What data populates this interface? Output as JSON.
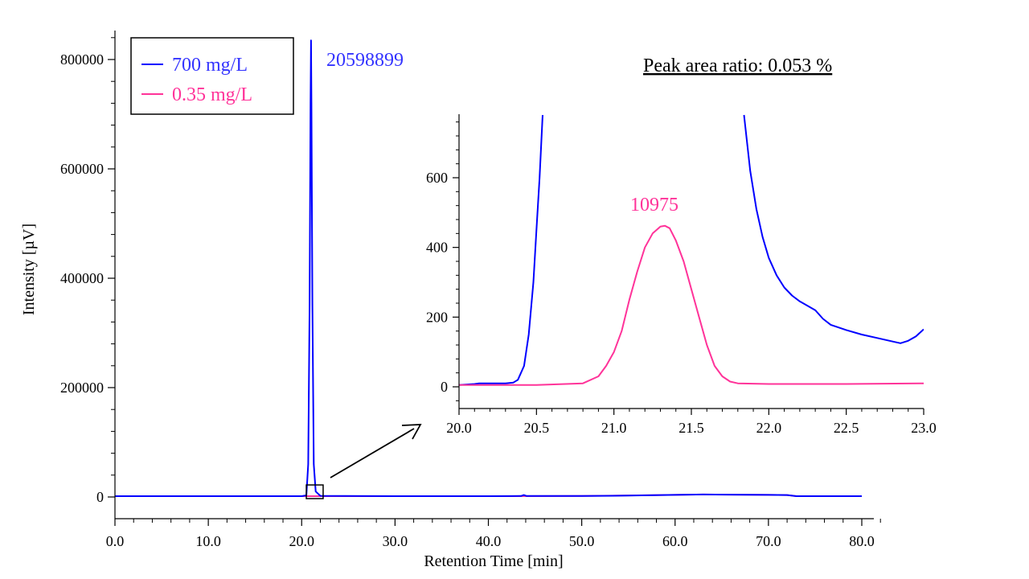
{
  "chart_data": {
    "type": "line",
    "colors": {
      "high": "#0000ff",
      "low": "#ff3399",
      "axis": "#000000"
    },
    "main": {
      "xlabel": "Retention Time [min]",
      "ylabel": "Intensity [µV]",
      "xlim": [
        0,
        80
      ],
      "ylim": [
        -40000,
        850000
      ],
      "xticks": [
        0,
        10,
        20,
        30,
        40,
        50,
        60,
        70,
        80
      ],
      "xtick_labels": [
        "0.0",
        "10.0",
        "20.0",
        "30.0",
        "40.0",
        "50.0",
        "60.0",
        "70.0",
        "80.0"
      ],
      "yticks": [
        0,
        200000,
        400000,
        600000,
        800000
      ],
      "ytick_labels": [
        "0",
        "200000",
        "400000",
        "600000",
        "800000"
      ],
      "legend_position": "top-left",
      "series": [
        {
          "name": "700 mg/L",
          "color": "#0000ff",
          "x": [
            0,
            10,
            20,
            20.5,
            20.7,
            20.85,
            20.95,
            21.0,
            21.05,
            21.15,
            21.3,
            21.5,
            22,
            30,
            40,
            43.5,
            43.8,
            44.1,
            50,
            55,
            60,
            63,
            66,
            70,
            72,
            73,
            75,
            80
          ],
          "y": [
            1500,
            1500,
            1500,
            3000,
            60000,
            350000,
            720000,
            835000,
            720000,
            350000,
            60000,
            10000,
            2000,
            1500,
            1500,
            1800,
            3500,
            1800,
            1800,
            2500,
            3800,
            4500,
            4200,
            3800,
            3600,
            1500,
            1500,
            1500
          ]
        },
        {
          "name": "0.35 mg/L",
          "color": "#ff3399",
          "x": [
            0,
            10,
            20,
            30,
            40,
            50,
            60,
            63,
            66,
            70,
            72,
            73,
            75,
            80
          ],
          "y": [
            1500,
            1500,
            1500,
            1500,
            1500,
            1800,
            3800,
            4500,
            4200,
            3800,
            3600,
            1500,
            1500,
            1500
          ]
        }
      ],
      "annotations": [
        {
          "text": "20598899",
          "series": "700 mg/L"
        },
        {
          "text": "Peak area ratio: 0.053 %"
        }
      ],
      "zoom_box": {
        "x": [
          20.5,
          22.3
        ],
        "y": [
          -3000,
          22000
        ]
      }
    },
    "inset": {
      "xlim": [
        20.0,
        23.0
      ],
      "ylim": [
        -30,
        780
      ],
      "xticks": [
        20.0,
        20.5,
        21.0,
        21.5,
        22.0,
        22.5,
        23.0
      ],
      "xtick_labels": [
        "20.0",
        "20.5",
        "21.0",
        "21.5",
        "22.0",
        "22.5",
        "23.0"
      ],
      "yticks": [
        0,
        200,
        400,
        600
      ],
      "ytick_labels": [
        "0",
        "200",
        "400",
        "600"
      ],
      "series": [
        {
          "name": "700 mg/L",
          "color": "#0000ff",
          "segments": [
            {
              "x": [
                20.0,
                20.1,
                20.13,
                20.2,
                20.3,
                20.35,
                20.38,
                20.42,
                20.45,
                20.48,
                20.5,
                20.52,
                20.54
              ],
              "y": [
                5,
                8,
                10,
                10,
                10,
                12,
                20,
                60,
                150,
                300,
                450,
                600,
                780
              ]
            },
            {
              "x": [
                21.84,
                21.88,
                21.92,
                21.96,
                22.0,
                22.05,
                22.1,
                22.15,
                22.2,
                22.3,
                22.35,
                22.4,
                22.5,
                22.6,
                22.7,
                22.8,
                22.85,
                22.9,
                22.95,
                23.0
              ],
              "y": [
                780,
                620,
                510,
                430,
                370,
                320,
                285,
                262,
                245,
                220,
                195,
                178,
                163,
                150,
                140,
                130,
                125,
                132,
                145,
                165
              ]
            }
          ]
        },
        {
          "name": "0.35 mg/L",
          "color": "#ff3399",
          "segments": [
            {
              "x": [
                20.0,
                20.5,
                20.8,
                20.9,
                20.95,
                21.0,
                21.05,
                21.1,
                21.15,
                21.2,
                21.25,
                21.3,
                21.33,
                21.36,
                21.4,
                21.45,
                21.5,
                21.55,
                21.6,
                21.65,
                21.7,
                21.75,
                21.8,
                22.0,
                22.5,
                23.0
              ],
              "y": [
                5,
                5,
                10,
                30,
                60,
                100,
                160,
                250,
                330,
                400,
                440,
                460,
                462,
                455,
                420,
                360,
                280,
                200,
                120,
                60,
                30,
                15,
                10,
                8,
                8,
                10
              ]
            }
          ]
        }
      ],
      "annotations": [
        {
          "text": "10975",
          "series": "0.35 mg/L"
        }
      ]
    }
  }
}
